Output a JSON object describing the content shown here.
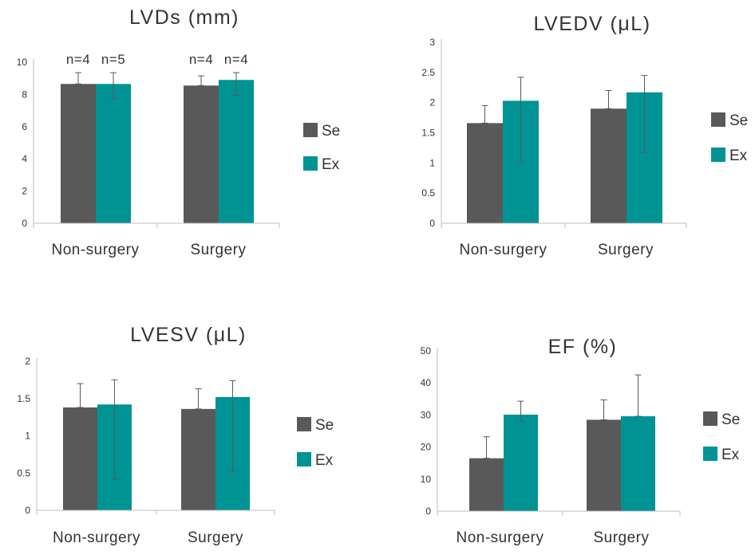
{
  "colors": {
    "Se": "#595959",
    "Ex": "#009393",
    "error_bar": "#595959",
    "axis": "#bfbfbf",
    "text": "#333333"
  },
  "chart_data": [
    {
      "type": "bar",
      "title": "LVDs (mm)",
      "categories": [
        "Non-surgery",
        "Surgery"
      ],
      "series": [
        {
          "name": "Se",
          "values": [
            8.65,
            8.55
          ],
          "error": [
            [
              8.65,
              9.35
            ],
            [
              8.55,
              9.15
            ]
          ]
        },
        {
          "name": "Ex",
          "values": [
            8.65,
            8.9
          ],
          "error": [
            [
              7.7,
              9.35
            ],
            [
              7.95,
              9.35
            ]
          ]
        }
      ],
      "ylim": [
        0,
        10
      ],
      "yticks": [
        "0",
        "2",
        "4",
        "6",
        "8",
        "10"
      ],
      "annotations": [
        {
          "category": 0,
          "series": 0,
          "text": "n=4"
        },
        {
          "category": 0,
          "series": 1,
          "text": "n=5"
        },
        {
          "category": 1,
          "series": 0,
          "text": "n=4"
        },
        {
          "category": 1,
          "series": 1,
          "text": "n=4"
        }
      ],
      "legend": "right"
    },
    {
      "type": "bar",
      "title": "LVEDV (μL)",
      "categories": [
        "Non-surgery",
        "Surgery"
      ],
      "series": [
        {
          "name": "Se",
          "values": [
            1.66,
            1.9
          ],
          "error": [
            [
              1.66,
              1.95
            ],
            [
              1.9,
              2.2
            ]
          ]
        },
        {
          "name": "Ex",
          "values": [
            2.03,
            2.17
          ],
          "error": [
            [
              1.02,
              2.42
            ],
            [
              1.18,
              2.45
            ]
          ]
        }
      ],
      "ylim": [
        0,
        3
      ],
      "yticks": [
        "0",
        "0.5",
        "1",
        "1.5",
        "2",
        "2.5",
        "3"
      ],
      "annotations": [],
      "legend": "right"
    },
    {
      "type": "bar",
      "title": "LVESV (μL)",
      "categories": [
        "Non-surgery",
        "Surgery"
      ],
      "series": [
        {
          "name": "Se",
          "values": [
            1.38,
            1.36
          ],
          "error": [
            [
              1.38,
              1.7
            ],
            [
              1.36,
              1.63
            ]
          ]
        },
        {
          "name": "Ex",
          "values": [
            1.42,
            1.52
          ],
          "error": [
            [
              0.42,
              1.75
            ],
            [
              0.52,
              1.74
            ]
          ]
        }
      ],
      "ylim": [
        0,
        2
      ],
      "yticks": [
        "0",
        "0.5",
        "1",
        "1.5",
        "2"
      ],
      "annotations": [],
      "legend": "right"
    },
    {
      "type": "bar",
      "title": "EF (%)",
      "categories": [
        "Non-surgery",
        "Surgery"
      ],
      "series": [
        {
          "name": "Se",
          "values": [
            16.5,
            28.5
          ],
          "error": [
            [
              16.5,
              23.2
            ],
            [
              28.5,
              34.7
            ]
          ]
        },
        {
          "name": "Ex",
          "values": [
            30.1,
            29.6
          ],
          "error": [
            [
              28.0,
              34.3
            ],
            [
              29.6,
              42.5
            ]
          ]
        }
      ],
      "ylim": [
        0,
        50
      ],
      "yticks": [
        "0",
        "10",
        "20",
        "30",
        "40",
        "50"
      ],
      "annotations": [],
      "legend": "right"
    }
  ]
}
